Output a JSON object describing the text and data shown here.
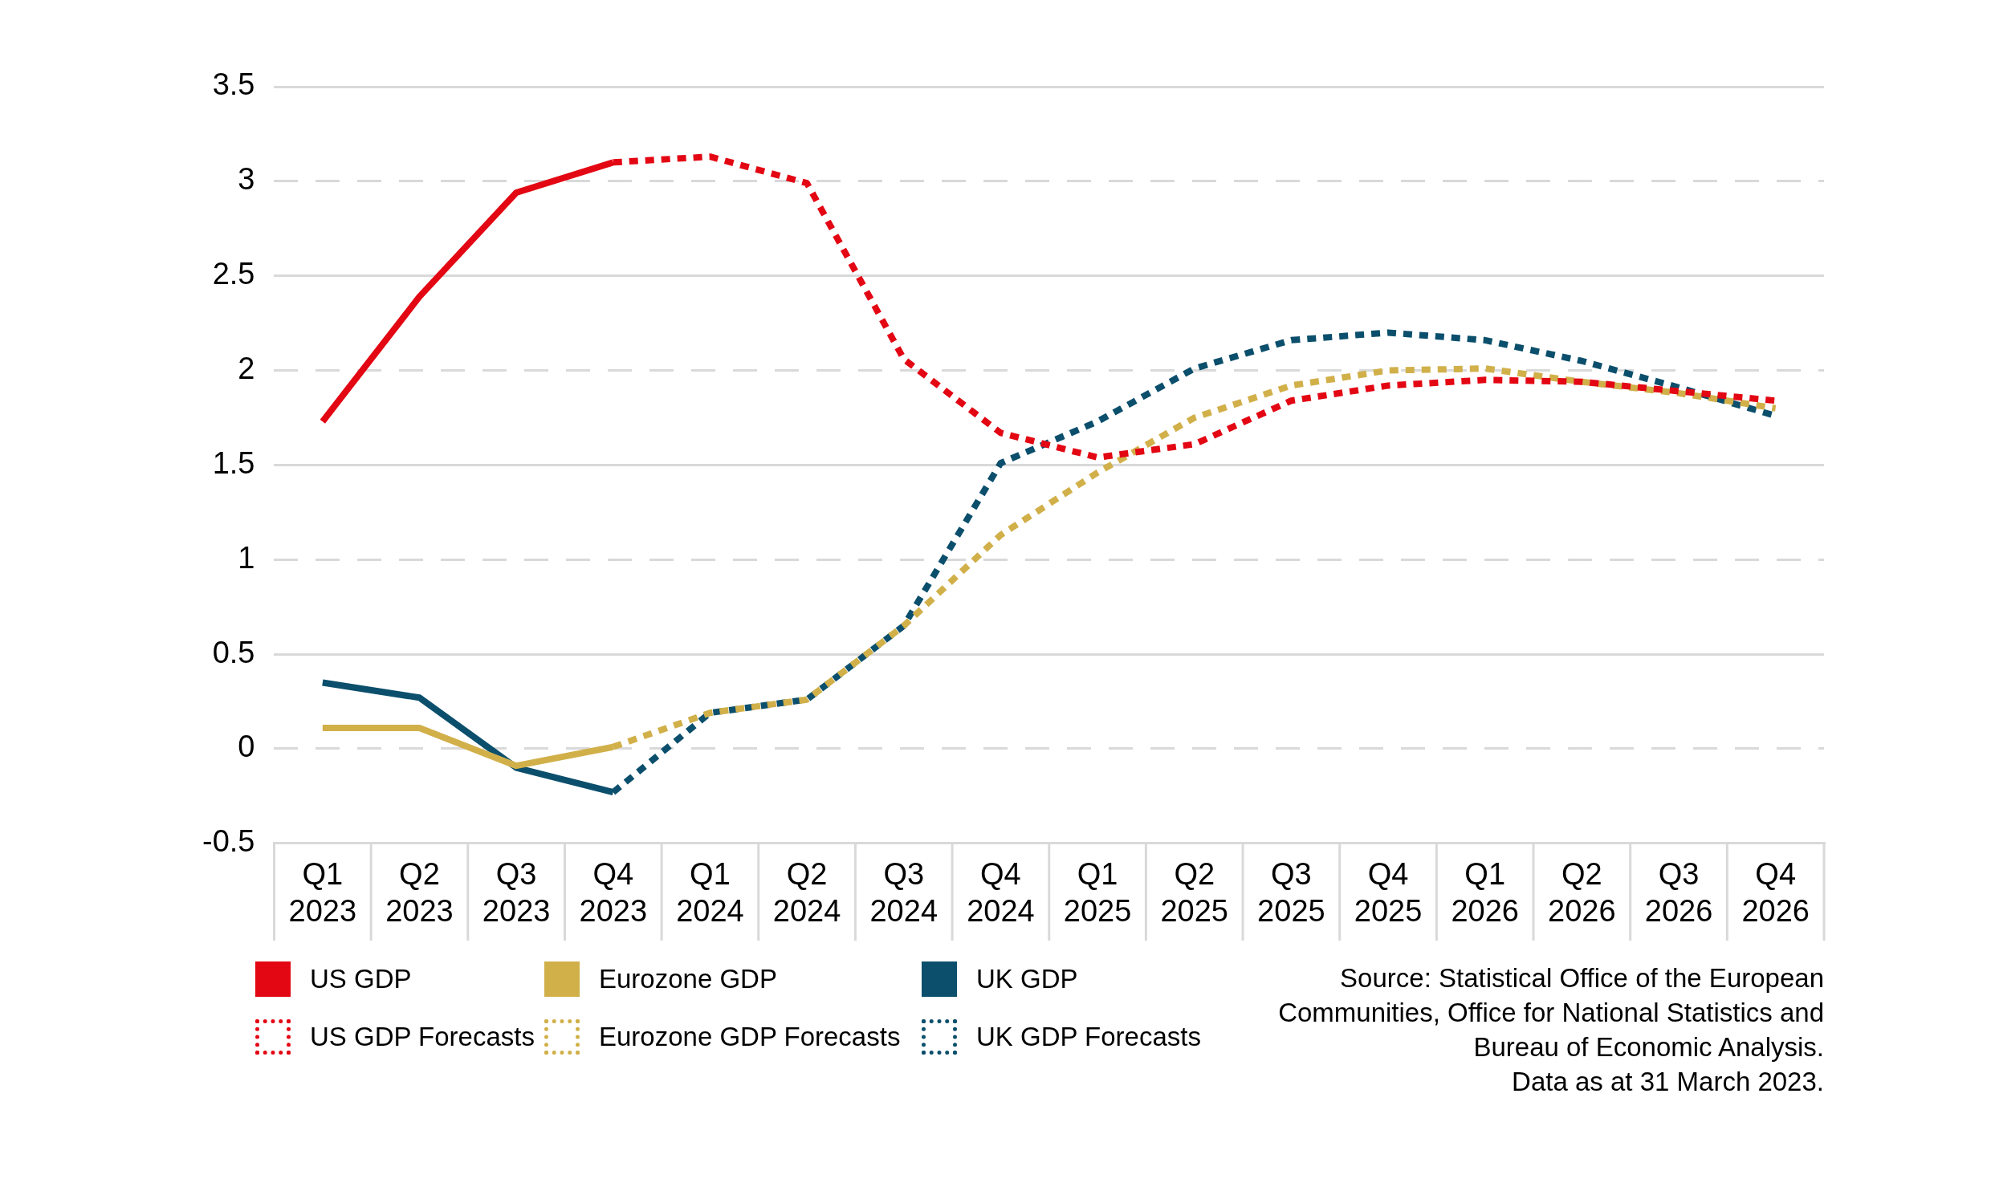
{
  "chart_data": {
    "type": "line",
    "categories": [
      "Q1 2023",
      "Q2 2023",
      "Q3 2023",
      "Q4 2023",
      "Q1 2024",
      "Q2 2024",
      "Q3 2024",
      "Q4 2024",
      "Q1 2025",
      "Q2 2025",
      "Q3 2025",
      "Q4 2025",
      "Q1 2026",
      "Q2 2026",
      "Q3 2026",
      "Q4 2026"
    ],
    "series": [
      {
        "name": "US GDP",
        "color": "#e30613",
        "line_style": "solid",
        "values": [
          1.73,
          2.39,
          2.94,
          3.1,
          null,
          null,
          null,
          null,
          null,
          null,
          null,
          null,
          null,
          null,
          null,
          null
        ]
      },
      {
        "name": "Eurozone GDP",
        "color": "#d1b04a",
        "line_style": "solid",
        "values": [
          0.11,
          0.11,
          -0.09,
          0.01,
          null,
          null,
          null,
          null,
          null,
          null,
          null,
          null,
          null,
          null,
          null,
          null
        ]
      },
      {
        "name": "UK GDP",
        "color": "#0b4f6c",
        "line_style": "solid",
        "values": [
          0.35,
          0.27,
          -0.1,
          -0.23,
          null,
          null,
          null,
          null,
          null,
          null,
          null,
          null,
          null,
          null,
          null,
          null
        ]
      },
      {
        "name": "US GDP Forecasts",
        "color": "#e30613",
        "line_style": "dotted",
        "values": [
          null,
          null,
          null,
          3.1,
          3.13,
          2.99,
          2.06,
          1.67,
          1.54,
          1.61,
          1.84,
          1.92,
          1.95,
          1.94,
          1.89,
          1.84
        ]
      },
      {
        "name": "Eurozone GDP Forecasts",
        "color": "#d1b04a",
        "line_style": "dotted",
        "values": [
          null,
          null,
          null,
          0.01,
          0.19,
          0.26,
          0.65,
          1.13,
          1.46,
          1.75,
          1.92,
          2.0,
          2.01,
          1.94,
          1.88,
          1.8
        ]
      },
      {
        "name": "UK GDP Forecasts",
        "color": "#0b4f6c",
        "line_style": "dotted",
        "values": [
          null,
          null,
          null,
          -0.23,
          0.19,
          0.26,
          0.65,
          1.51,
          1.73,
          2.01,
          2.16,
          2.2,
          2.16,
          2.05,
          1.91,
          1.76
        ]
      }
    ],
    "ylim": [
      -0.5,
      3.5
    ],
    "yticks": [
      -0.5,
      0,
      0.5,
      1,
      1.5,
      2,
      2.5,
      3,
      3.5
    ],
    "grid": "y",
    "legend": "bottom left",
    "marker": "none",
    "annotations": [
      "Source: Statistical Office of the European Communities, Office for National Statistics and Bureau of Economic Analysis.",
      "Data as at 31 March 2023."
    ]
  }
}
